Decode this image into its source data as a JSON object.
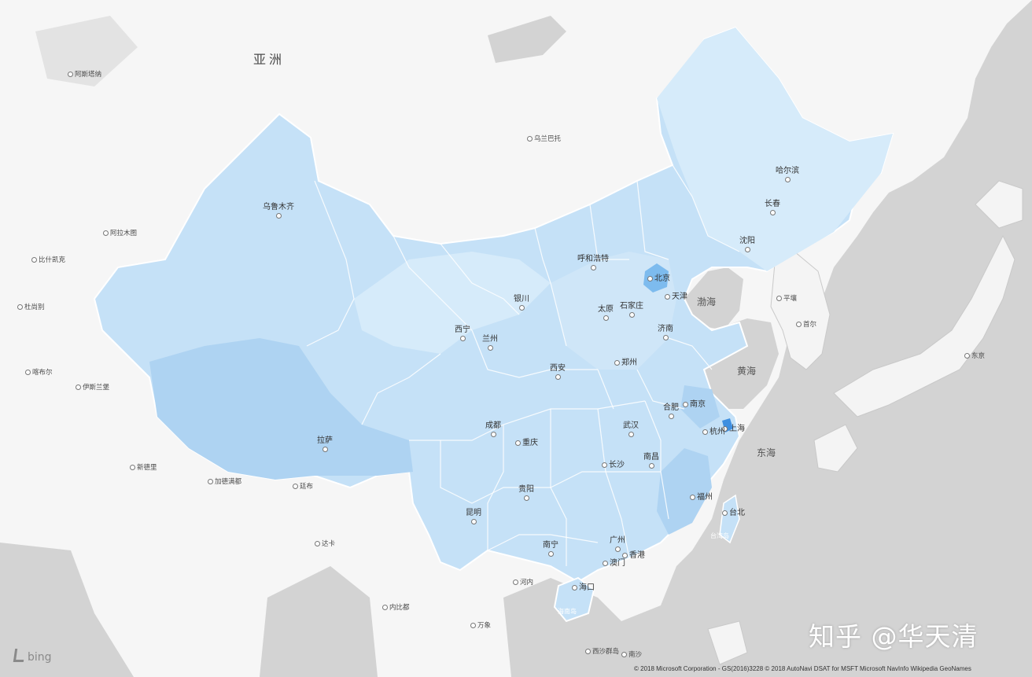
{
  "map": {
    "colors": {
      "water": "#d3d3d3",
      "land": "#f6f6f6",
      "china_base": "#c5e1f7",
      "china_light": "#d6ebfa",
      "china_medium": "#aed3f2",
      "china_dark": "#7dbbee",
      "china_darkest": "#3f8fe0",
      "border": "#ffffff"
    },
    "region_label": "亚洲",
    "seas": [
      {
        "id": "bohai",
        "label": "渤海"
      },
      {
        "id": "yellow-sea",
        "label": "黄海"
      },
      {
        "id": "east-china-sea",
        "label": "东海"
      }
    ],
    "china_cities": [
      {
        "id": "urumqi",
        "label": "乌鲁木齐"
      },
      {
        "id": "harbin",
        "label": "哈尔滨"
      },
      {
        "id": "changchun",
        "label": "长春"
      },
      {
        "id": "shenyang",
        "label": "沈阳"
      },
      {
        "id": "hohhot",
        "label": "呼和浩特"
      },
      {
        "id": "beijing",
        "label": "北京"
      },
      {
        "id": "tianjin",
        "label": "天津"
      },
      {
        "id": "yinchuan",
        "label": "银川"
      },
      {
        "id": "taiyuan",
        "label": "太原"
      },
      {
        "id": "shijiazhuang",
        "label": "石家庄"
      },
      {
        "id": "jinan",
        "label": "济南"
      },
      {
        "id": "xining",
        "label": "西宁"
      },
      {
        "id": "lanzhou",
        "label": "兰州"
      },
      {
        "id": "zhengzhou",
        "label": "郑州"
      },
      {
        "id": "xian",
        "label": "西安"
      },
      {
        "id": "hefei",
        "label": "合肥"
      },
      {
        "id": "nanjing",
        "label": "南京"
      },
      {
        "id": "shanghai",
        "label": "上海"
      },
      {
        "id": "hangzhou",
        "label": "杭州"
      },
      {
        "id": "chengdu",
        "label": "成都"
      },
      {
        "id": "chongqing",
        "label": "重庆"
      },
      {
        "id": "wuhan",
        "label": "武汉"
      },
      {
        "id": "lhasa",
        "label": "拉萨"
      },
      {
        "id": "changsha",
        "label": "长沙"
      },
      {
        "id": "nanchang",
        "label": "南昌"
      },
      {
        "id": "guiyang",
        "label": "贵阳"
      },
      {
        "id": "fuzhou",
        "label": "福州"
      },
      {
        "id": "kunming",
        "label": "昆明"
      },
      {
        "id": "nanning",
        "label": "南宁"
      },
      {
        "id": "guangzhou",
        "label": "广州"
      },
      {
        "id": "hongkong",
        "label": "香港"
      },
      {
        "id": "macau",
        "label": "澳门"
      },
      {
        "id": "haikou",
        "label": "海口"
      },
      {
        "id": "hainan",
        "label": "海南岛"
      },
      {
        "id": "taipei",
        "label": "台北"
      },
      {
        "id": "taiwan",
        "label": "台湾岛"
      }
    ],
    "foreign_cities": [
      {
        "id": "moscow-east",
        "label": "阿斯塔纳"
      },
      {
        "id": "ulaanbaatar",
        "label": "乌兰巴托"
      },
      {
        "id": "almaty",
        "label": "阿拉木图"
      },
      {
        "id": "bishkek",
        "label": "比什凯克"
      },
      {
        "id": "dushanbe",
        "label": "杜尚别"
      },
      {
        "id": "kabul",
        "label": "喀布尔"
      },
      {
        "id": "islamabad",
        "label": "伊斯兰堡"
      },
      {
        "id": "new-delhi",
        "label": "新德里"
      },
      {
        "id": "kathmandu",
        "label": "加德满都"
      },
      {
        "id": "thimphu",
        "label": "廷布"
      },
      {
        "id": "dhaka",
        "label": "达卡"
      },
      {
        "id": "naypyidaw",
        "label": "内比都"
      },
      {
        "id": "hanoi",
        "label": "河内"
      },
      {
        "id": "vientiane",
        "label": "万象"
      },
      {
        "id": "pyongyang",
        "label": "平壤"
      },
      {
        "id": "seoul",
        "label": "首尔"
      },
      {
        "id": "tokyo",
        "label": "东京"
      },
      {
        "id": "xisha",
        "label": "西沙群岛"
      },
      {
        "id": "nansha",
        "label": "南沙"
      }
    ],
    "attribution": {
      "logo_text": "bing",
      "copyright": "© 2018 Microsoft Corporation - GS(2016)3228 © 2018 AutoNavi DSAT for MSFT Microsoft NavInfo Wikipedia GeoNames"
    },
    "watermark": "知乎 @华天清"
  }
}
